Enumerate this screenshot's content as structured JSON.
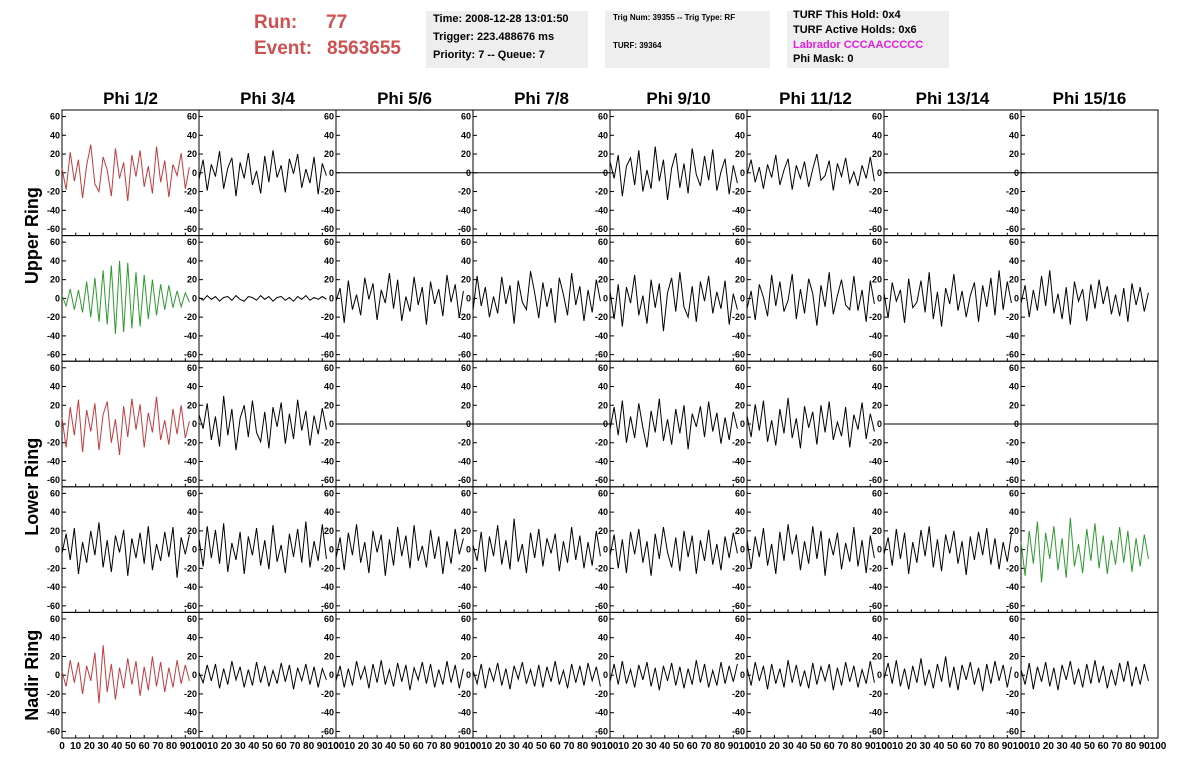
{
  "header": {
    "run_label": "Run:",
    "run": "77",
    "event_label": "Event:",
    "event": "8563655",
    "time": "Time: 2008-12-28 13:01:50",
    "trigger": "Trigger: 223.488676 ms",
    "priority": "Priority: 7 -- Queue: 7",
    "trig_num": "Trig Num: 39355 -- Trig Type: RF",
    "turf": "TURF: 39364",
    "turf_hold": "TURF This Hold: 0x4",
    "turf_active": "TURF Active Holds: 0x6",
    "labrador": "Labrador CCCAACCCCC",
    "phi_mask": "Phi Mask: 0"
  },
  "column_titles": [
    "Phi 1/2",
    "Phi 3/4",
    "Phi 5/6",
    "Phi 7/8",
    "Phi 9/10",
    "Phi 11/12",
    "Phi 13/14",
    "Phi 15/16"
  ],
  "row_titles": [
    "Upper Ring",
    "Lower Ring",
    "Nadir Ring"
  ],
  "axes": {
    "xlim": [
      0,
      100
    ],
    "ylim": [
      -67,
      67
    ],
    "yticks": [
      -60,
      -40,
      -20,
      0,
      20,
      40,
      60
    ],
    "xticks": [
      0,
      10,
      20,
      30,
      40,
      50,
      60,
      70,
      80,
      90,
      100
    ],
    "x": [
      0,
      3,
      6,
      9,
      12,
      15,
      18,
      21,
      24,
      27,
      30,
      33,
      36,
      39,
      42,
      45,
      48,
      51,
      54,
      57,
      60,
      63,
      66,
      69,
      72,
      75,
      78,
      81,
      84,
      87,
      90,
      93
    ]
  },
  "chart_data": [
    {
      "type": "line",
      "color": "#c23b3b",
      "values": [
        5,
        -18,
        22,
        -9,
        14,
        -27,
        8,
        30,
        -12,
        -20,
        17,
        3,
        -25,
        26,
        -6,
        11,
        -30,
        19,
        -4,
        24,
        -15,
        7,
        -22,
        28,
        -10,
        13,
        -26,
        9,
        -3,
        21,
        -17,
        6
      ]
    },
    {
      "type": "line",
      "color": "#000000",
      "values": [
        -7,
        14,
        -19,
        9,
        -4,
        23,
        -17,
        5,
        16,
        -25,
        11,
        -6,
        21,
        -13,
        2,
        -22,
        18,
        -10,
        24,
        -5,
        8,
        -21,
        15,
        -1,
        20,
        -16,
        4,
        -11,
        17,
        -23,
        10,
        -3
      ]
    },
    {
      "type": "line",
      "color": "#000000",
      "x": [
        0,
        100
      ],
      "values": [
        0,
        0
      ]
    },
    {
      "type": "line",
      "color": "#000000",
      "x": [
        0,
        100
      ],
      "values": [
        0,
        0
      ]
    },
    {
      "type": "line",
      "color": "#000000",
      "values": [
        12,
        -6,
        19,
        -25,
        7,
        16,
        -13,
        24,
        -20,
        3,
        -17,
        28,
        -9,
        14,
        -29,
        5,
        21,
        -16,
        10,
        -22,
        26,
        -2,
        -14,
        18,
        -8,
        25,
        -19,
        1,
        15,
        -23,
        8,
        -11
      ]
    },
    {
      "type": "line",
      "color": "#000000",
      "values": [
        -2,
        14,
        -10,
        6,
        -17,
        9,
        -5,
        19,
        -13,
        3,
        15,
        -18,
        8,
        -6,
        12,
        -15,
        4,
        20,
        -8,
        -3,
        13,
        -19,
        10,
        -4,
        16,
        -11,
        1,
        -14,
        8,
        -6,
        17,
        -9
      ]
    },
    {
      "type": "line",
      "color": "#000000",
      "x": [
        0,
        100
      ],
      "values": [
        0,
        0
      ]
    },
    {
      "type": "line",
      "color": "#000000",
      "x": [
        0,
        100
      ],
      "values": [
        0,
        0
      ]
    },
    {
      "type": "line",
      "color": "#2e9a2e",
      "values": [
        3,
        -8,
        10,
        -12,
        9,
        -15,
        18,
        -20,
        22,
        -25,
        30,
        -28,
        35,
        -38,
        40,
        -36,
        38,
        -32,
        28,
        -30,
        25,
        -22,
        20,
        -18,
        15,
        -12,
        14,
        -10,
        8,
        -9,
        6,
        -4
      ]
    },
    {
      "type": "line",
      "color": "#000000",
      "values": [
        1,
        -2,
        3,
        -1,
        2,
        -3,
        1,
        2,
        -2,
        3,
        -1,
        -3,
        2,
        1,
        -2,
        3,
        -1,
        2,
        -3,
        1,
        2,
        -2,
        1,
        -3,
        2,
        -1,
        3,
        -2,
        1,
        -1,
        2,
        -1
      ]
    },
    {
      "type": "line",
      "color": "#000000",
      "values": [
        -3,
        11,
        -26,
        19,
        -12,
        4,
        -18,
        22,
        -1,
        16,
        -23,
        9,
        -5,
        27,
        -11,
        20,
        -24,
        2,
        -14,
        23,
        -7,
        12,
        -28,
        18,
        -6,
        10,
        -19,
        25,
        -4,
        15,
        -21,
        8
      ]
    },
    {
      "type": "line",
      "color": "#000000",
      "values": [
        -13,
        24,
        -8,
        12,
        -20,
        2,
        -16,
        23,
        -6,
        14,
        -27,
        19,
        -4,
        -12,
        29,
        6,
        -21,
        17,
        -9,
        11,
        -26,
        22,
        4,
        -18,
        27,
        -7,
        13,
        -24,
        9,
        -15,
        20,
        -3
      ]
    },
    {
      "type": "line",
      "color": "#000000",
      "values": [
        8,
        -22,
        15,
        -30,
        12,
        -5,
        25,
        -18,
        3,
        -27,
        20,
        -10,
        16,
        -35,
        6,
        22,
        -14,
        28,
        -9,
        -20,
        13,
        -25,
        18,
        -3,
        24,
        -16,
        7,
        -11,
        19,
        -28,
        5,
        -12
      ]
    },
    {
      "type": "line",
      "color": "#000000",
      "values": [
        -11,
        8,
        -23,
        15,
        1,
        -19,
        25,
        -8,
        18,
        -14,
        -2,
        26,
        -22,
        10,
        -16,
        21,
        5,
        -29,
        14,
        -9,
        28,
        -17,
        3,
        20,
        -7,
        -12,
        24,
        -13,
        9,
        -25,
        19,
        -6
      ]
    },
    {
      "type": "line",
      "color": "#000000",
      "values": [
        6,
        -21,
        17,
        -3,
        9,
        -26,
        21,
        -10,
        -4,
        19,
        -15,
        28,
        -22,
        7,
        -30,
        11,
        -6,
        26,
        -13,
        8,
        -20,
        3,
        17,
        -25,
        14,
        -9,
        22,
        -18,
        30,
        -12,
        18,
        -5
      ]
    },
    {
      "type": "line",
      "color": "#000000",
      "values": [
        -5,
        14,
        -20,
        9,
        -13,
        24,
        -8,
        30,
        -16,
        5,
        -22,
        12,
        -28,
        18,
        -3,
        10,
        -24,
        15,
        -11,
        20,
        -6,
        13,
        -17,
        4,
        -19,
        11,
        -25,
        16,
        -7,
        12,
        -14,
        6
      ]
    },
    {
      "type": "line",
      "color": "#c23b3b",
      "values": [
        7,
        -25,
        18,
        -12,
        26,
        -30,
        15,
        -8,
        22,
        -28,
        10,
        24,
        -20,
        5,
        -33,
        19,
        -14,
        27,
        -6,
        21,
        -25,
        12,
        -9,
        29,
        -17,
        4,
        -22,
        16,
        -11,
        20,
        -15,
        3
      ]
    },
    {
      "type": "line",
      "color": "#000000",
      "values": [
        10,
        -5,
        22,
        -17,
        8,
        -24,
        30,
        -12,
        16,
        -28,
        6,
        20,
        -14,
        25,
        -9,
        -19,
        13,
        -26,
        18,
        -3,
        23,
        -21,
        11,
        -16,
        26,
        -7,
        14,
        -23,
        9,
        -11,
        17,
        -6
      ]
    },
    {
      "type": "line",
      "color": "#000000",
      "x": [
        0,
        100
      ],
      "values": [
        0,
        0
      ]
    },
    {
      "type": "line",
      "color": "#000000",
      "x": [
        0,
        100
      ],
      "values": [
        0,
        0
      ]
    },
    {
      "type": "line",
      "color": "#000000",
      "values": [
        -6,
        18,
        -12,
        25,
        -20,
        8,
        -15,
        22,
        -4,
        -25,
        14,
        -9,
        27,
        -18,
        5,
        -22,
        16,
        -10,
        20,
        -27,
        11,
        -3,
        19,
        -14,
        24,
        -8,
        12,
        -21,
        7,
        -17,
        13,
        -5
      ]
    },
    {
      "type": "line",
      "color": "#000000",
      "values": [
        9,
        -14,
        21,
        -7,
        25,
        -19,
        4,
        -23,
        16,
        -10,
        28,
        -15,
        6,
        -26,
        19,
        -4,
        13,
        -22,
        20,
        -9,
        24,
        -17,
        2,
        -13,
        18,
        -25,
        10,
        -6,
        23,
        -16,
        11,
        -8
      ]
    },
    {
      "type": "line",
      "color": "#000000",
      "x": [
        0,
        100
      ],
      "values": [
        0,
        0
      ]
    },
    {
      "type": "line",
      "color": "#000000",
      "x": [
        0,
        100
      ],
      "values": [
        0,
        0
      ]
    },
    {
      "type": "line",
      "color": "#000000",
      "values": [
        -4,
        17,
        -11,
        23,
        -26,
        8,
        -14,
        20,
        -6,
        29,
        -19,
        10,
        -24,
        15,
        -3,
        21,
        -28,
        12,
        -9,
        18,
        -15,
        25,
        -22,
        6,
        -12,
        19,
        -8,
        24,
        -30,
        13,
        -5,
        16
      ]
    },
    {
      "type": "line",
      "color": "#000000",
      "values": [
        12,
        -18,
        25,
        -9,
        21,
        -15,
        28,
        -24,
        7,
        -11,
        19,
        -26,
        14,
        -6,
        23,
        -17,
        10,
        -21,
        26,
        -13,
        5,
        -25,
        17,
        -8,
        22,
        -14,
        30,
        -19,
        9,
        -12,
        27,
        -10
      ]
    },
    {
      "type": "line",
      "color": "#000000",
      "values": [
        -9,
        13,
        -22,
        18,
        -6,
        27,
        -14,
        8,
        -25,
        20,
        -3,
        16,
        -28,
        11,
        -17,
        24,
        -7,
        15,
        -20,
        26,
        -12,
        4,
        -19,
        21,
        -10,
        14,
        -26,
        9,
        -15,
        22,
        -5,
        12
      ]
    },
    {
      "type": "line",
      "color": "#000000",
      "values": [
        5,
        -12,
        19,
        -24,
        14,
        -7,
        26,
        -16,
        10,
        -21,
        33,
        -13,
        6,
        -25,
        18,
        -9,
        22,
        -18,
        12,
        -4,
        17,
        -23,
        9,
        -14,
        24,
        -11,
        15,
        -20,
        8,
        -17,
        20,
        -7
      ]
    },
    {
      "type": "line",
      "color": "#000000",
      "values": [
        -7,
        16,
        -20,
        11,
        -25,
        19,
        -5,
        22,
        -14,
        9,
        -28,
        17,
        -10,
        24,
        -3,
        -19,
        13,
        -23,
        20,
        -8,
        15,
        -26,
        10,
        -12,
        21,
        -16,
        6,
        -22,
        14,
        -9,
        18,
        -4
      ]
    },
    {
      "type": "line",
      "color": "#000000",
      "values": [
        11,
        -20,
        14,
        -8,
        23,
        -17,
        6,
        -26,
        19,
        -12,
        27,
        -5,
        16,
        -22,
        9,
        -15,
        25,
        -10,
        20,
        -28,
        12,
        -6,
        18,
        -21,
        7,
        -13,
        24,
        -18,
        10,
        -25,
        15,
        -9
      ]
    },
    {
      "type": "line",
      "color": "#000000",
      "values": [
        -5,
        13,
        -17,
        22,
        -10,
        18,
        -26,
        8,
        -14,
        21,
        -7,
        25,
        -19,
        11,
        -23,
        16,
        -4,
        20,
        -15,
        9,
        -27,
        14,
        -11,
        19,
        -6,
        23,
        -16,
        12,
        -21,
        8,
        -13,
        17
      ]
    },
    {
      "type": "line",
      "color": "#2e9a2e",
      "values": [
        8,
        -28,
        20,
        -15,
        30,
        -35,
        18,
        -10,
        25,
        -22,
        12,
        -30,
        34,
        -18,
        6,
        -25,
        22,
        -12,
        28,
        -20,
        15,
        -26,
        10,
        -16,
        24,
        -14,
        20,
        -24,
        12,
        -18,
        16,
        -10
      ]
    },
    {
      "type": "line",
      "color": "#c23b3b",
      "values": [
        4,
        -12,
        16,
        -8,
        14,
        -20,
        10,
        -6,
        24,
        -30,
        32,
        -18,
        12,
        -26,
        8,
        -14,
        18,
        -10,
        15,
        -22,
        9,
        -16,
        20,
        -12,
        14,
        -18,
        8,
        -13,
        16,
        -9,
        11,
        -6
      ]
    },
    {
      "type": "line",
      "color": "#000000",
      "values": [
        3,
        -8,
        11,
        -6,
        12,
        -14,
        7,
        -10,
        15,
        -5,
        9,
        -13,
        6,
        -11,
        14,
        -8,
        10,
        -12,
        5,
        -9,
        13,
        -7,
        11,
        -15,
        8,
        -6,
        12,
        -10,
        9,
        -13,
        7,
        -5
      ]
    },
    {
      "type": "line",
      "color": "#000000",
      "values": [
        -6,
        10,
        -13,
        7,
        -11,
        15,
        -4,
        9,
        -14,
        12,
        -8,
        16,
        -10,
        6,
        -12,
        13,
        -7,
        11,
        -16,
        8,
        -5,
        14,
        -9,
        12,
        -13,
        6,
        -10,
        15,
        -8,
        11,
        -14,
        7
      ]
    },
    {
      "type": "line",
      "color": "#000000",
      "values": [
        5,
        -9,
        12,
        -14,
        8,
        -6,
        13,
        -11,
        7,
        -15,
        10,
        -4,
        14,
        -9,
        6,
        -12,
        11,
        -13,
        9,
        -7,
        15,
        -10,
        5,
        -14,
        12,
        -8,
        10,
        -11,
        13,
        -6,
        9,
        -12
      ]
    },
    {
      "type": "line",
      "color": "#000000",
      "values": [
        -7,
        12,
        -10,
        15,
        -9,
        6,
        -13,
        11,
        -5,
        14,
        -12,
        8,
        -16,
        10,
        -6,
        13,
        -11,
        9,
        -14,
        7,
        -10,
        16,
        -8,
        12,
        -13,
        5,
        -11,
        14,
        -9,
        10,
        -7,
        12
      ]
    },
    {
      "type": "line",
      "color": "#000000",
      "values": [
        8,
        -11,
        14,
        -6,
        10,
        -15,
        12,
        -9,
        7,
        -13,
        16,
        -8,
        11,
        -12,
        5,
        -14,
        13,
        -10,
        9,
        -6,
        12,
        -16,
        8,
        -11,
        14,
        -7,
        10,
        -13,
        6,
        -9,
        15,
        -8
      ]
    },
    {
      "type": "line",
      "color": "#000000",
      "values": [
        -4,
        13,
        -9,
        16,
        -12,
        7,
        -15,
        10,
        -8,
        18,
        -11,
        6,
        -14,
        12,
        -7,
        20,
        -13,
        9,
        -16,
        11,
        -5,
        14,
        -10,
        8,
        -17,
        12,
        -9,
        15,
        -6,
        11,
        -13,
        9
      ]
    },
    {
      "type": "line",
      "color": "#000000",
      "values": [
        6,
        -10,
        13,
        -15,
        9,
        -7,
        14,
        -12,
        8,
        -16,
        11,
        -5,
        15,
        -10,
        7,
        -13,
        12,
        -9,
        16,
        -8,
        10,
        -14,
        6,
        -11,
        13,
        -7,
        15,
        -12,
        9,
        -10,
        12,
        -6
      ]
    }
  ]
}
